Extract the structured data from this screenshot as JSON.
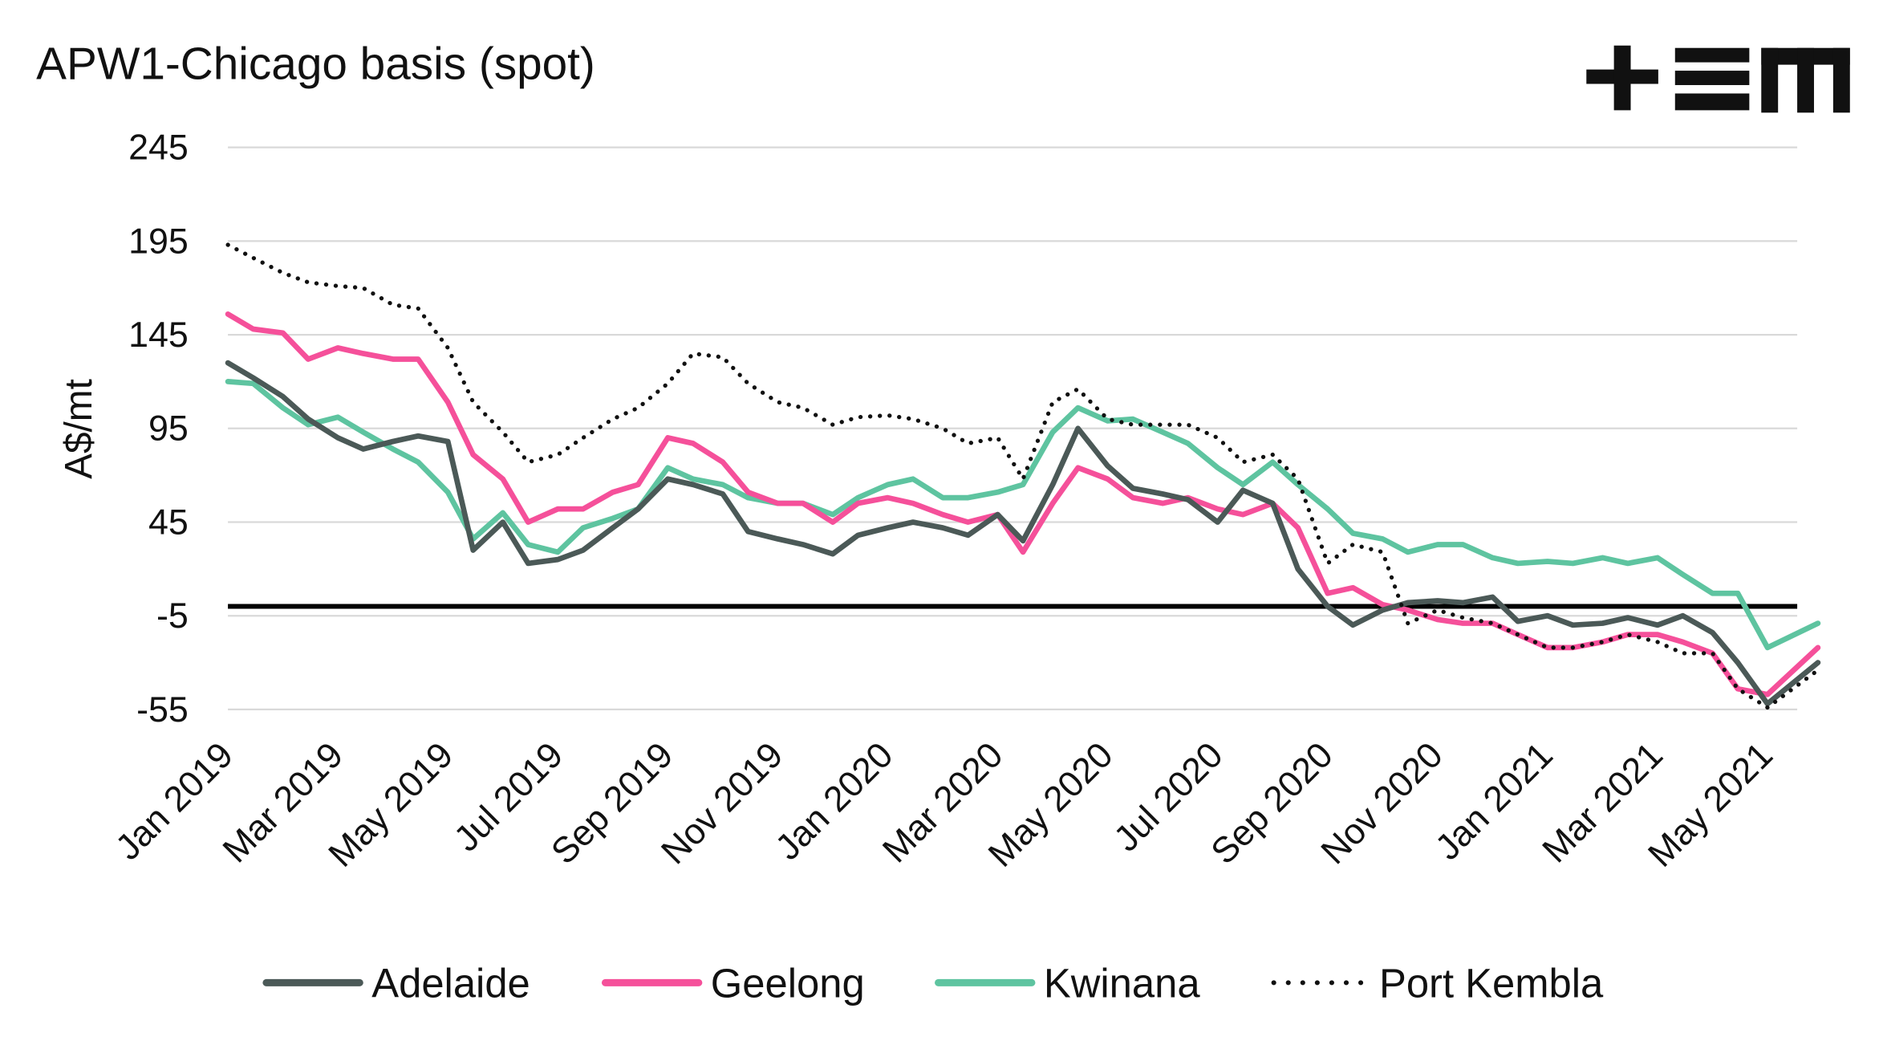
{
  "chart_data": {
    "type": "line",
    "title": "APW1-Chicago basis (spot)",
    "ylabel": "A$/mt",
    "xlabel": "",
    "ylim": [
      -55,
      245
    ],
    "yticks": [
      "245",
      "195",
      "145",
      "95",
      "45",
      "-5",
      "-55"
    ],
    "ytick_values": [
      245,
      195,
      145,
      95,
      45,
      -5,
      -55
    ],
    "xlim": [
      "2019-01-01",
      "2021-05-29"
    ],
    "xticks": [
      "Jan 2019",
      "Mar 2019",
      "May 2019",
      "Jul 2019",
      "Sep 2019",
      "Nov 2019",
      "Jan 2020",
      "Mar 2020",
      "May 2020",
      "Jul 2020",
      "Sep 2020",
      "Nov 2020",
      "Jan 2021",
      "Mar 2021",
      "May 2021"
    ],
    "xtick_dates": [
      "2019-01-01",
      "2019-03-01",
      "2019-05-01",
      "2019-07-01",
      "2019-09-01",
      "2019-11-01",
      "2020-01-01",
      "2020-03-01",
      "2020-05-01",
      "2020-07-01",
      "2020-09-01",
      "2020-11-01",
      "2021-01-01",
      "2021-03-01",
      "2021-05-01"
    ],
    "grid": "horizontal",
    "reference_line": 0,
    "legend_placement": "bottom",
    "x": [
      "2019-01-01",
      "2019-01-15",
      "2019-02-01",
      "2019-02-15",
      "2019-03-01",
      "2019-03-15",
      "2019-04-01",
      "2019-04-15",
      "2019-05-01",
      "2019-05-15",
      "2019-06-01",
      "2019-06-15",
      "2019-07-01",
      "2019-07-15",
      "2019-08-01",
      "2019-08-15",
      "2019-09-01",
      "2019-09-15",
      "2019-10-01",
      "2019-10-15",
      "2019-11-01",
      "2019-11-15",
      "2019-12-01",
      "2019-12-15",
      "2020-01-01",
      "2020-01-15",
      "2020-02-01",
      "2020-02-15",
      "2020-03-01",
      "2020-03-15",
      "2020-04-01",
      "2020-04-15",
      "2020-05-01",
      "2020-05-15",
      "2020-06-01",
      "2020-06-15",
      "2020-07-01",
      "2020-07-15",
      "2020-08-01",
      "2020-08-15",
      "2020-09-01",
      "2020-09-15",
      "2020-10-01",
      "2020-10-15",
      "2020-11-01",
      "2020-11-15",
      "2020-12-01",
      "2020-12-15",
      "2021-01-01",
      "2021-01-15",
      "2021-02-01",
      "2021-02-15",
      "2021-03-01",
      "2021-03-15",
      "2021-04-01",
      "2021-04-15",
      "2021-05-01",
      "2021-05-29"
    ],
    "series": [
      {
        "name": "Adelaide",
        "color": "#4b5957",
        "style": "solid",
        "values": [
          130,
          122,
          112,
          100,
          90,
          84,
          88,
          91,
          88,
          30,
          45,
          23,
          25,
          30,
          42,
          52,
          68,
          65,
          60,
          40,
          36,
          33,
          28,
          38,
          42,
          45,
          42,
          38,
          49,
          35,
          65,
          95,
          75,
          63,
          60,
          57,
          45,
          62,
          55,
          20,
          0,
          -10,
          -2,
          2,
          3,
          2,
          5,
          -8,
          -5,
          -10,
          -9,
          -6,
          -10,
          -5,
          -14,
          -30,
          -52,
          -30
        ]
      },
      {
        "name": "Geelong",
        "color": "#f5509a",
        "style": "solid",
        "values": [
          156,
          148,
          146,
          132,
          138,
          135,
          132,
          132,
          109,
          81,
          68,
          45,
          52,
          52,
          61,
          65,
          90,
          87,
          77,
          61,
          55,
          55,
          45,
          55,
          58,
          55,
          49,
          45,
          49,
          29,
          55,
          74,
          68,
          58,
          55,
          58,
          52,
          49,
          55,
          42,
          7,
          10,
          1,
          -2,
          -7,
          -9,
          -9,
          -15,
          -22,
          -22,
          -19,
          -15,
          -15,
          -19,
          -25,
          -44,
          -47,
          -22
        ]
      },
      {
        "name": "Kwinana",
        "color": "#5ec4a0",
        "style": "solid",
        "values": [
          120,
          119,
          106,
          97,
          101,
          93,
          84,
          77,
          61,
          36,
          50,
          33,
          29,
          42,
          47,
          52,
          74,
          68,
          65,
          58,
          55,
          55,
          49,
          58,
          65,
          68,
          58,
          58,
          61,
          65,
          93,
          106,
          99,
          100,
          93,
          87,
          74,
          65,
          77,
          65,
          52,
          39,
          36,
          29,
          33,
          33,
          26,
          23,
          24,
          23,
          26,
          23,
          26,
          17,
          7,
          7,
          -22,
          -9
        ]
      },
      {
        "name": "Port Kembla",
        "color": "#111111",
        "style": "dotted",
        "values": [
          193,
          186,
          178,
          173,
          171,
          170,
          161,
          159,
          138,
          109,
          93,
          77,
          81,
          90,
          100,
          106,
          119,
          135,
          133,
          119,
          109,
          106,
          97,
          101,
          102,
          100,
          95,
          87,
          90,
          68,
          109,
          116,
          100,
          97,
          97,
          97,
          90,
          77,
          81,
          68,
          23,
          33,
          29,
          -9,
          -2,
          -6,
          -9,
          -15,
          -22,
          -22,
          -19,
          -15,
          -19,
          -25,
          -25,
          -44,
          -54,
          -34
        ]
      }
    ]
  },
  "logo": {
    "text": "+EM"
  }
}
